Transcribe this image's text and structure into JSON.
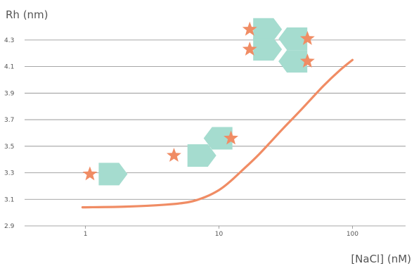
{
  "chart_data": {
    "type": "line",
    "title": "",
    "ylabel": "Rh (nm)",
    "xlabel": "[NaCl] (nM)",
    "x_scale": "log",
    "xlim": [
      0.35,
      250
    ],
    "ylim": [
      2.9,
      4.4
    ],
    "x_ticks": [
      "1",
      "10",
      "100"
    ],
    "x_tick_values": [
      1,
      10,
      100
    ],
    "y_ticks": [
      "2.9",
      "3.1",
      "3.3",
      "3.5",
      "3.7",
      "3.9",
      "4.1",
      "4.3"
    ],
    "y_tick_values": [
      2.9,
      3.1,
      3.3,
      3.5,
      3.7,
      3.9,
      4.1,
      4.3
    ],
    "grid": "horizontal",
    "series": [
      {
        "x": [
          0.95,
          2,
          4,
          6,
          8,
          10,
          12,
          15,
          20,
          30,
          40,
          60,
          80,
          100
        ],
        "y": [
          3.04,
          3.045,
          3.06,
          3.08,
          3.12,
          3.17,
          3.23,
          3.32,
          3.44,
          3.63,
          3.76,
          3.95,
          4.07,
          4.15
        ]
      }
    ],
    "series_color": "#f08c64",
    "annotations": {
      "shape_color": "#a5dccf",
      "star_color": "#f08c64",
      "shape_type": "arrow-hexagon",
      "groups": [
        {
          "shapes": [
            {
              "x": 1.6,
              "y": 3.29,
              "dir": "right"
            }
          ],
          "stars": [
            {
              "x": 1.08,
              "y": 3.29
            }
          ]
        },
        {
          "shapes": [
            {
              "x": 7.4,
              "y": 3.43,
              "dir": "right"
            },
            {
              "x": 9.9,
              "y": 3.56,
              "dir": "left"
            }
          ],
          "stars": [
            {
              "x": 4.6,
              "y": 3.43
            },
            {
              "x": 12.3,
              "y": 3.56
            }
          ]
        },
        {
          "shapes": [
            {
              "x": 23,
              "y": 4.38,
              "dir": "right"
            },
            {
              "x": 23,
              "y": 4.23,
              "dir": "right"
            },
            {
              "x": 36,
              "y": 4.31,
              "dir": "left"
            },
            {
              "x": 36,
              "y": 4.14,
              "dir": "left"
            }
          ],
          "stars": [
            {
              "x": 17,
              "y": 4.38
            },
            {
              "x": 17,
              "y": 4.23
            },
            {
              "x": 46,
              "y": 4.31
            },
            {
              "x": 46,
              "y": 4.14
            }
          ]
        }
      ]
    }
  }
}
